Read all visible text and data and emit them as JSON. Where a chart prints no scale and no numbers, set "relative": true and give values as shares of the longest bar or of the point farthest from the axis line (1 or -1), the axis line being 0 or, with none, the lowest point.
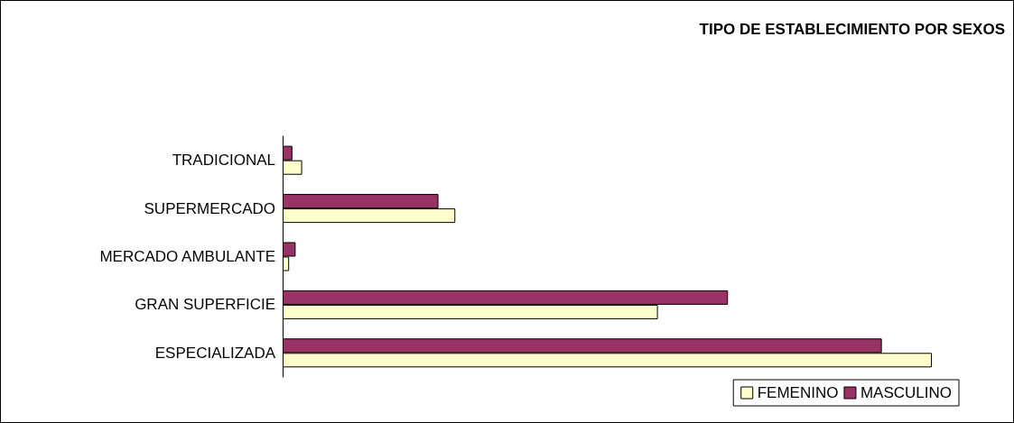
{
  "chart_data": {
    "type": "bar",
    "orientation": "horizontal",
    "relative": true,
    "title": "TIPO DE ESTABLECIMIENTO POR SEXOS",
    "categories": [
      "TRADICIONAL",
      "SUPERMERCADO",
      "MERCADO AMBULANTE",
      "GRAN SUPERFICIE",
      "ESPECIALIZADA"
    ],
    "series": [
      {
        "name": "FEMENINO",
        "color": "#ffffcc",
        "values": [
          0.03,
          0.266,
          0.01,
          0.578,
          1
        ]
      },
      {
        "name": "MASCULINO",
        "color": "#993366",
        "values": [
          0.015,
          0.24,
          0.02,
          0.686,
          0.923
        ]
      }
    ],
    "legend": "bottom right"
  }
}
